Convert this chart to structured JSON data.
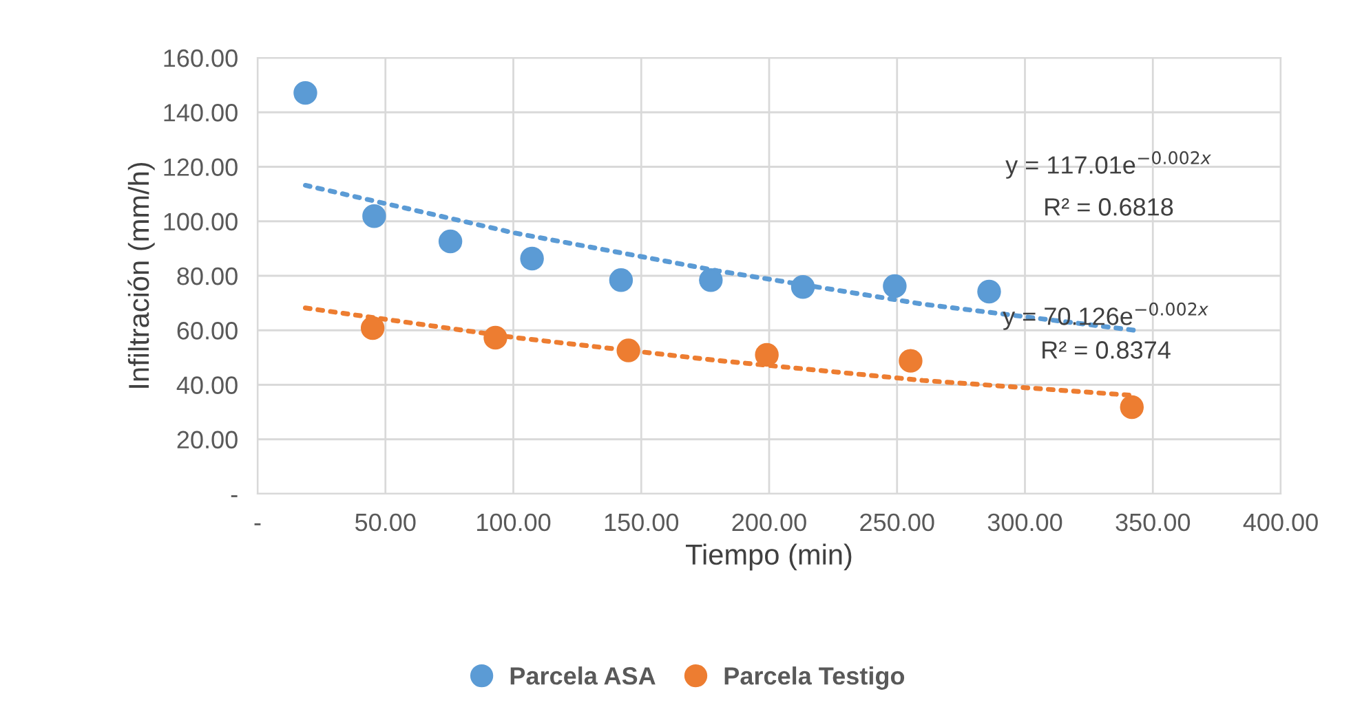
{
  "chart_data": {
    "type": "scatter",
    "xlabel": "Tiempo (min)",
    "ylabel": "Infiltración (mm/h)",
    "xlim": [
      0,
      400
    ],
    "ylim": [
      0,
      160
    ],
    "xticks": [
      {
        "value": 0,
        "label": "-"
      },
      {
        "value": 50,
        "label": "50.00"
      },
      {
        "value": 100,
        "label": "100.00"
      },
      {
        "value": 150,
        "label": "150.00"
      },
      {
        "value": 200,
        "label": "200.00"
      },
      {
        "value": 250,
        "label": "250.00"
      },
      {
        "value": 300,
        "label": "300.00"
      },
      {
        "value": 350,
        "label": "350.00"
      },
      {
        "value": 400,
        "label": "400.00"
      }
    ],
    "yticks": [
      {
        "value": 0,
        "label": "-"
      },
      {
        "value": 20,
        "label": "20.00"
      },
      {
        "value": 40,
        "label": "40.00"
      },
      {
        "value": 60,
        "label": "60.00"
      },
      {
        "value": 80,
        "label": "80.00"
      },
      {
        "value": 100,
        "label": "100.00"
      },
      {
        "value": 120,
        "label": "120.00"
      },
      {
        "value": 140,
        "label": "140.00"
      },
      {
        "value": 160,
        "label": "160.00"
      }
    ],
    "grid": true,
    "legend": "bottom",
    "marker": "circle",
    "series": [
      {
        "name": "Parcela ASA",
        "color": "#5b9bd5",
        "x": [
          18.7,
          45.6,
          75.4,
          107.3,
          142.1,
          177.2,
          213.2,
          249.1,
          286
        ],
        "values": [
          147.1,
          101.9,
          92.6,
          86.3,
          78.4,
          78.4,
          75.9,
          76.2,
          74.2
        ]
      },
      {
        "name": "Parcela Testigo",
        "color": "#ed7d31",
        "x": [
          45,
          93,
          145,
          199.1,
          255.3,
          341.8
        ],
        "values": [
          60.8,
          57.3,
          52.6,
          51.0,
          48.8,
          31.8
        ]
      },
      {
        "type": "line",
        "line_style": "dotted",
        "marker": "none",
        "color": "#5b9bd5",
        "x": [
          18.7,
          100,
          180,
          260,
          343
        ],
        "values": [
          113.2,
          95.8,
          81.8,
          69.6,
          60
        ]
      },
      {
        "type": "line",
        "line_style": "dotted",
        "marker": "none",
        "color": "#ed7d31",
        "x": [
          18.7,
          100,
          180,
          260,
          341
        ],
        "values": [
          68.2,
          57.4,
          48.9,
          41.6,
          36.2
        ]
      }
    ],
    "annotations": [
      "y = 117.01e$^{−0.002x}$",
      "R² = 0.6818",
      "y = 70.126e$^{−0.002x}$",
      "R² = 0.8374"
    ]
  }
}
